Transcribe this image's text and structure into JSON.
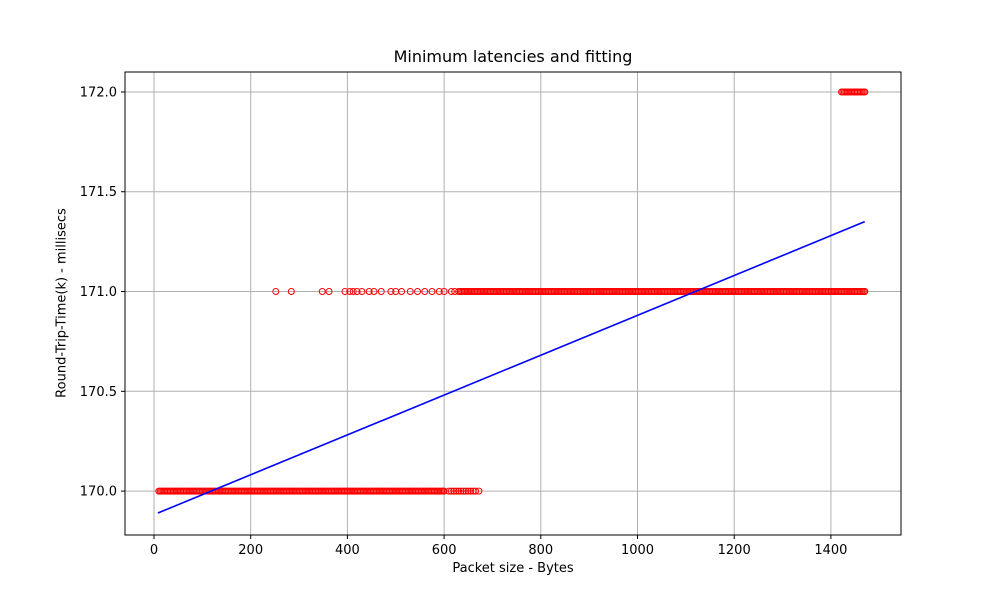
{
  "chart_data": {
    "type": "scatter",
    "title": "Minimum latencies and fitting",
    "xlabel": "Packet size - Bytes",
    "ylabel": "Round-Trip-Time(k) - millisecs",
    "xlim": [
      -60,
      1545
    ],
    "ylim": [
      169.78,
      172.1
    ],
    "xticks": [
      0,
      200,
      400,
      600,
      800,
      1000,
      1200,
      1400
    ],
    "yticks": [
      170.0,
      170.5,
      171.0,
      171.5,
      172.0
    ],
    "xtick_labels": [
      "0",
      "200",
      "400",
      "600",
      "800",
      "1000",
      "1200",
      "1400"
    ],
    "ytick_labels": [
      "170.0",
      "170.5",
      "171.0",
      "171.5",
      "172.0"
    ],
    "grid": true,
    "colors": {
      "points": "#ff0000",
      "fit": "#0000ff",
      "grid": "#b0b0b0"
    },
    "series": [
      {
        "kind": "scatter",
        "marker": "open-circle",
        "clusters": [
          {
            "y": 170.0,
            "x_dense_range": [
              10,
              600
            ],
            "x_sparse": [
              610,
              615,
              620,
              625,
              630,
              635,
              640,
              645,
              650,
              655,
              660,
              665,
              672
            ]
          },
          {
            "y": 171.0,
            "x_sparse": [
              252,
              284,
              348,
              362,
              395,
              405,
              412,
              420,
              430,
              445,
              455,
              470,
              490,
              500,
              512,
              530,
              545,
              560,
              575,
              590,
              600,
              615,
              622
            ],
            "x_dense_range": [
              630,
              1470
            ]
          },
          {
            "y": 172.0,
            "x_dense_range": [
              1422,
              1470
            ]
          }
        ]
      },
      {
        "kind": "line",
        "x": [
          8,
          1470
        ],
        "y": [
          169.89,
          171.35
        ]
      }
    ]
  }
}
